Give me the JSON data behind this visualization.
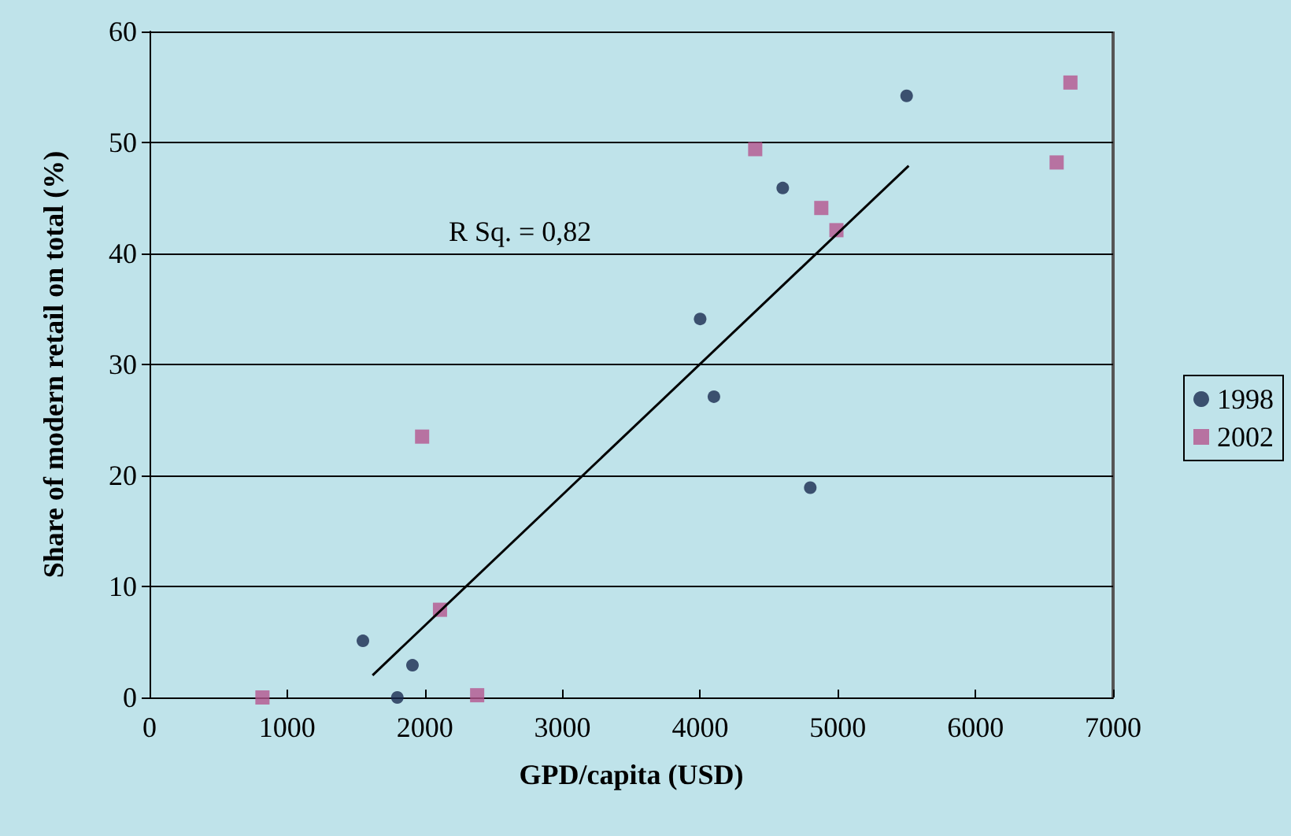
{
  "chart_data": {
    "type": "scatter",
    "xlabel": "GPD/capita (USD)",
    "ylabel": "Share of modern retail on total (%)",
    "xlim": [
      0,
      7000
    ],
    "xticks": [
      0,
      1000,
      2000,
      3000,
      4000,
      5000,
      6000,
      7000
    ],
    "ylim": [
      0,
      60
    ],
    "yticks": [
      0,
      10,
      20,
      30,
      40,
      50,
      60
    ],
    "grid": "y",
    "legend": "right",
    "series": [
      {
        "name": "1998",
        "color": "#1a2a50",
        "marker": "circle",
        "x": [
          1550,
          1910,
          1800,
          4000,
          4100,
          4600,
          4800,
          5500
        ],
        "values": [
          5.1,
          2.9,
          0,
          34.1,
          27.1,
          45.9,
          18.9,
          54.2
        ]
      },
      {
        "name": "2002",
        "color": "#b5558f",
        "marker": "square",
        "x": [
          820,
          1980,
          2110,
          2380,
          4400,
          4880,
          4990,
          6590,
          6690
        ],
        "values": [
          0,
          23.5,
          7.9,
          0.2,
          49.4,
          44.1,
          42.1,
          48.2,
          55.4
        ]
      },
      {
        "type": "line",
        "color": "#000000",
        "marker": "none",
        "x": [
          1620,
          5515
        ],
        "values": [
          2,
          47.9
        ]
      }
    ],
    "annotations": [
      "R Sq. = 0,82"
    ]
  }
}
